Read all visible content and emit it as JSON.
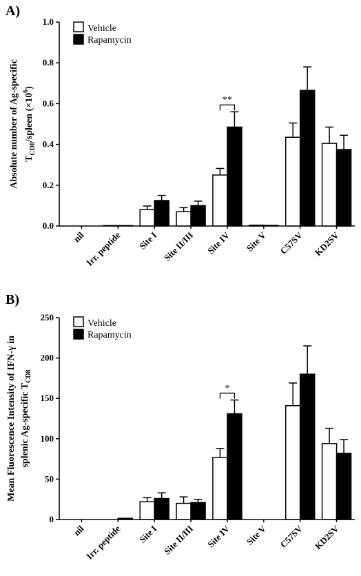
{
  "chart_data": [
    {
      "type": "bar",
      "panel_label": "A)",
      "ylabel_line1": "Absolute number of Ag-specific",
      "ylabel_line2_main": "T",
      "ylabel_line2_sub": "CD8",
      "ylabel_line2_rest": "/spleen (×10",
      "ylabel_line2_sup": "6",
      "ylabel_line2_end": ")",
      "ylim": [
        0,
        1.0
      ],
      "yticks": [
        "0.0",
        "0.2",
        "0.4",
        "0.6",
        "0.8",
        "1.0"
      ],
      "ytick_values": [
        0,
        0.2,
        0.4,
        0.6,
        0.8,
        1.0
      ],
      "categories": [
        "nil",
        "Irr. peptide",
        "Site I",
        "Site II/III",
        "Site IV",
        "Site V",
        "C57SV",
        "KD2SV"
      ],
      "series": [
        {
          "name": "Vehicle",
          "color": "#ffffff",
          "values": [
            0.0,
            0.002,
            0.08,
            0.07,
            0.25,
            0.004,
            0.435,
            0.405
          ],
          "errors": [
            0,
            0,
            0.018,
            0.02,
            0.032,
            0,
            0.07,
            0.08
          ]
        },
        {
          "name": "Rapamycin",
          "color": "#000000",
          "values": [
            0.0,
            0.002,
            0.125,
            0.1,
            0.485,
            0.003,
            0.665,
            0.375
          ],
          "errors": [
            0,
            0,
            0.025,
            0.022,
            0.075,
            0,
            0.115,
            0.07
          ]
        }
      ],
      "legend": [
        "Vehicle",
        "Rapamycin"
      ],
      "legend_position": "top-left",
      "annotation": {
        "text": "**",
        "category": "Site IV"
      }
    },
    {
      "type": "bar",
      "panel_label": "B)",
      "ylabel_line1": "Mean Fluorescence Intensity of IFN-γ in",
      "ylabel_line2_main": "splenic Ag-specific T",
      "ylabel_line2_sub": "CD8",
      "ylim": [
        0,
        250
      ],
      "yticks": [
        "0",
        "50",
        "100",
        "150",
        "200",
        "250"
      ],
      "ytick_values": [
        0,
        50,
        100,
        150,
        200,
        250
      ],
      "categories": [
        "nil",
        "Irr. peptide",
        "Site I",
        "Site II/III",
        "Site IV",
        "Site V",
        "C57SV",
        "KD2SV"
      ],
      "series": [
        {
          "name": "Vehicle",
          "color": "#ffffff",
          "values": [
            0,
            0,
            22,
            20,
            77,
            0,
            141,
            94
          ],
          "errors": [
            0,
            0,
            5,
            8,
            11,
            0,
            28,
            19
          ]
        },
        {
          "name": "Rapamycin",
          "color": "#000000",
          "values": [
            0,
            1.5,
            26,
            21,
            131,
            0,
            180,
            82
          ],
          "errors": [
            0,
            0,
            7,
            4,
            17,
            0,
            35,
            17
          ]
        }
      ],
      "legend": [
        "Vehicle",
        "Rapamycin"
      ],
      "legend_position": "top-left",
      "annotation": {
        "text": "*",
        "category": "Site IV"
      }
    }
  ]
}
